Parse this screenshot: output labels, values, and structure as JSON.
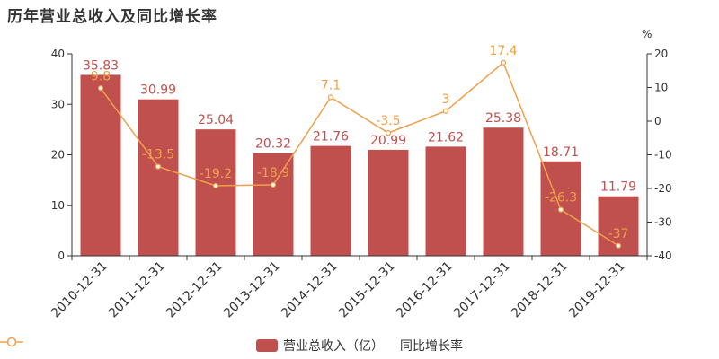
{
  "chart_data": {
    "type": "bar",
    "title": "历年营业总收入及同比增长率",
    "categories": [
      "2010-12-31",
      "2011-12-31",
      "2012-12-31",
      "2013-12-31",
      "2014-12-31",
      "2015-12-31",
      "2016-12-31",
      "2017-12-31",
      "2018-12-31",
      "2019-12-31"
    ],
    "series": [
      {
        "name": "营业总收入（亿）",
        "type": "bar",
        "axis": "left",
        "values": [
          35.83,
          30.99,
          25.04,
          20.32,
          21.76,
          20.99,
          21.62,
          25.38,
          18.71,
          11.79
        ],
        "labels": [
          "35.83",
          "30.99",
          "25.04",
          "20.32",
          "21.76",
          "20.99",
          "21.62",
          "25.38",
          "18.71",
          "11.79"
        ],
        "color": "#c0504d"
      },
      {
        "name": "同比增长率",
        "type": "line",
        "axis": "right",
        "values": [
          9.8,
          -13.5,
          -19.2,
          -18.9,
          7.1,
          -3.5,
          3,
          17.4,
          -26.3,
          -37
        ],
        "labels": [
          "9.8",
          "-13.5",
          "-19.2",
          "-18.9",
          "7.1",
          "-3.5",
          "3",
          "17.4",
          "-26.3",
          "-37"
        ],
        "color": "#f0a04b"
      }
    ],
    "y_left": {
      "min": 0,
      "max": 40,
      "ticks": [
        "0",
        "10",
        "20",
        "30",
        "40"
      ],
      "tick_values": [
        0,
        10,
        20,
        30,
        40
      ]
    },
    "y_right": {
      "min": -40,
      "max": 20,
      "unit": "%",
      "ticks": [
        "-40",
        "-30",
        "-20",
        "-10",
        "0",
        "10",
        "20"
      ],
      "tick_values": [
        -40,
        -30,
        -20,
        -10,
        0,
        10,
        20
      ]
    },
    "grid": false,
    "legend": "bottom-center",
    "colors": {
      "bar": "#c0504d",
      "line": "#f0a04b",
      "bar_label": "#c0504d",
      "axis": "#333333"
    }
  }
}
